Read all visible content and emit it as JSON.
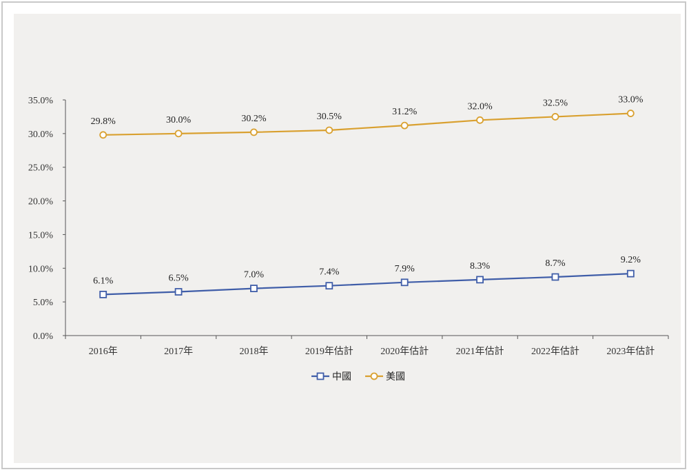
{
  "chart_data": {
    "type": "line",
    "categories": [
      "2016年",
      "2017年",
      "2018年",
      "2019年估計",
      "2020年估計",
      "2021年估計",
      "2022年估計",
      "2023年估計"
    ],
    "series": [
      {
        "name": "中國",
        "values": [
          6.1,
          6.5,
          7.0,
          7.4,
          7.9,
          8.3,
          8.7,
          9.2
        ],
        "labels": [
          "6.1%",
          "6.5%",
          "7.0%",
          "7.4%",
          "7.9%",
          "8.3%",
          "8.7%",
          "9.2%"
        ],
        "color": "#3f5da8",
        "marker": "square"
      },
      {
        "name": "美國",
        "values": [
          29.8,
          30.0,
          30.2,
          30.5,
          31.2,
          32.0,
          32.5,
          33.0
        ],
        "labels": [
          "29.8%",
          "30.0%",
          "30.2%",
          "30.5%",
          "31.2%",
          "32.0%",
          "32.5%",
          "33.0%"
        ],
        "color": "#d9a02f",
        "marker": "circle"
      }
    ],
    "ylim": [
      0,
      35
    ],
    "yticks": [
      0,
      5,
      10,
      15,
      20,
      25,
      30,
      35
    ],
    "ytick_labels": [
      "0.0%",
      "5.0%",
      "10.0%",
      "15.0%",
      "20.0%",
      "25.0%",
      "30.0%",
      "35.0%"
    ],
    "title": "",
    "xlabel": "",
    "ylabel": "",
    "grid": false,
    "legend_position": "bottom-center"
  }
}
